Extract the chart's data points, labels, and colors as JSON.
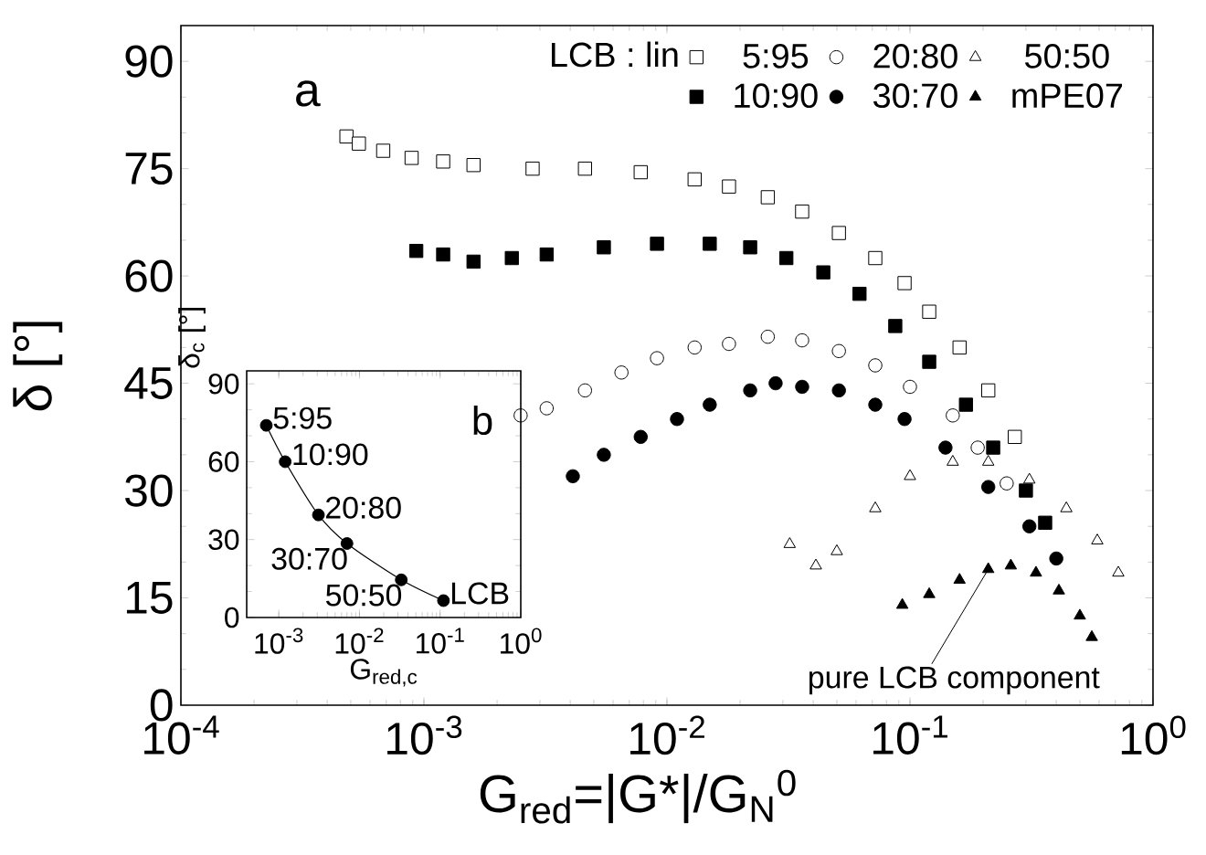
{
  "chart_data": [
    {
      "type": "scatter",
      "xlabel": "G$_{red}$=|G*|/G$_{N}$$^{0}$",
      "ylabel": "δ [°]",
      "legend_title": "LCB : lin",
      "legend": "top right",
      "log": "x",
      "xlim": [
        0.0001,
        1
      ],
      "ylim": [
        0,
        95
      ],
      "xticks": [
        {
          "value": 0.0001,
          "label": "10$^{-4}$"
        },
        {
          "value": 0.001,
          "label": "10$^{-3}$"
        },
        {
          "value": 0.01,
          "label": "10$^{-2}$"
        },
        {
          "value": 0.1,
          "label": "10$^{-1}$"
        },
        {
          "value": 1,
          "label": "10$^{0}$"
        }
      ],
      "yticks": [
        0,
        15,
        30,
        45,
        60,
        75,
        90
      ],
      "annotations": [
        "a",
        {
          "text": "pure LCB component",
          "x": 0.21,
          "y": 19
        }
      ],
      "series": [
        {
          "name": "5:95",
          "color": "#000000",
          "marker": "square-open",
          "x": [
            0.00048,
            0.00054,
            0.00068,
            0.00089,
            0.0012,
            0.0016,
            0.0028,
            0.0046,
            0.0078,
            0.013,
            0.018,
            0.026,
            0.036,
            0.051,
            0.072,
            0.095,
            0.12,
            0.16,
            0.21,
            0.27
          ],
          "values": [
            79.5,
            78.5,
            77.5,
            76.5,
            76,
            75.5,
            75,
            75,
            74.5,
            73.5,
            72.5,
            71,
            69,
            66,
            62.5,
            59,
            55,
            50,
            44,
            37.5
          ]
        },
        {
          "name": "20:80",
          "color": "#000000",
          "marker": "circle-open",
          "x": [
            0.0025,
            0.0032,
            0.0046,
            0.0065,
            0.0091,
            0.013,
            0.018,
            0.026,
            0.036,
            0.051,
            0.072,
            0.1,
            0.15,
            0.19,
            0.25
          ],
          "values": [
            40.5,
            41.5,
            44,
            46.5,
            48.5,
            50,
            50.5,
            51.5,
            51,
            49.5,
            47.5,
            44.5,
            40.5,
            36,
            31
          ]
        },
        {
          "name": "50:50",
          "color": "#000000",
          "marker": "triangle-open",
          "x": [
            0.032,
            0.041,
            0.05,
            0.072,
            0.1,
            0.15,
            0.21,
            0.31,
            0.44,
            0.59,
            0.72
          ],
          "values": [
            22.5,
            19.5,
            21.5,
            27.5,
            32,
            34,
            34,
            31.5,
            27.5,
            23,
            18.5
          ]
        },
        {
          "name": "10:90",
          "color": "#000000",
          "marker": "square",
          "x": [
            0.00093,
            0.0012,
            0.0016,
            0.0023,
            0.0032,
            0.0055,
            0.0091,
            0.015,
            0.022,
            0.031,
            0.044,
            0.062,
            0.087,
            0.12,
            0.17,
            0.22,
            0.3,
            0.36
          ],
          "values": [
            63.5,
            63,
            62,
            62.5,
            63,
            64,
            64.5,
            64.5,
            64,
            62.5,
            60.5,
            57.5,
            53,
            48,
            42,
            36,
            30,
            25.5
          ]
        },
        {
          "name": "30:70",
          "color": "#000000",
          "marker": "circle",
          "x": [
            0.0041,
            0.0055,
            0.0078,
            0.011,
            0.015,
            0.022,
            0.028,
            0.036,
            0.051,
            0.072,
            0.095,
            0.14,
            0.21,
            0.31,
            0.4
          ],
          "values": [
            32,
            35,
            37.5,
            40,
            42,
            44,
            45,
            44.5,
            44,
            42,
            40,
            36,
            30.5,
            25,
            20.5
          ]
        },
        {
          "name": "mPE07",
          "color": "#000000",
          "marker": "triangle",
          "x": [
            0.093,
            0.12,
            0.16,
            0.21,
            0.26,
            0.33,
            0.41,
            0.5,
            0.56
          ],
          "values": [
            14,
            15.5,
            17.5,
            19,
            19.5,
            18.5,
            16,
            12.5,
            9.5
          ]
        }
      ]
    },
    {
      "type": "line",
      "xlabel": "G$_{red,c}$",
      "ylabel": "δ$_{c}$ [°]",
      "log": "x",
      "xlim": [
        0.0004,
        1
      ],
      "ylim": [
        0,
        95
      ],
      "xticks": [
        {
          "value": 0.001,
          "label": "10$^{-3}$"
        },
        {
          "value": 0.01,
          "label": "10$^{-2}$"
        },
        {
          "value": 0.1,
          "label": "10$^{-1}$"
        },
        {
          "value": 1,
          "label": "10$^{0}$"
        }
      ],
      "yticks": [
        0,
        30,
        60,
        90
      ],
      "marker": "circle",
      "line_style": "solid",
      "annotations": [
        "b",
        {
          "text": "5:95",
          "x": 0.0007,
          "y": 74
        },
        {
          "text": "10:90",
          "x": 0.0012,
          "y": 60
        },
        {
          "text": "20:80",
          "x": 0.0031,
          "y": 39.5
        },
        {
          "text": "30:70",
          "x": 0.007,
          "y": 28.5
        },
        {
          "text": "50:50",
          "x": 0.033,
          "y": 14.5
        },
        {
          "text": "LCB",
          "x": 0.11,
          "y": 6.5
        }
      ],
      "series": [
        {
          "color": "#000000",
          "x": [
            0.0007,
            0.0012,
            0.0031,
            0.007,
            0.033,
            0.11
          ],
          "values": [
            74,
            60,
            39.5,
            28.5,
            14.5,
            6.5
          ]
        }
      ]
    }
  ]
}
